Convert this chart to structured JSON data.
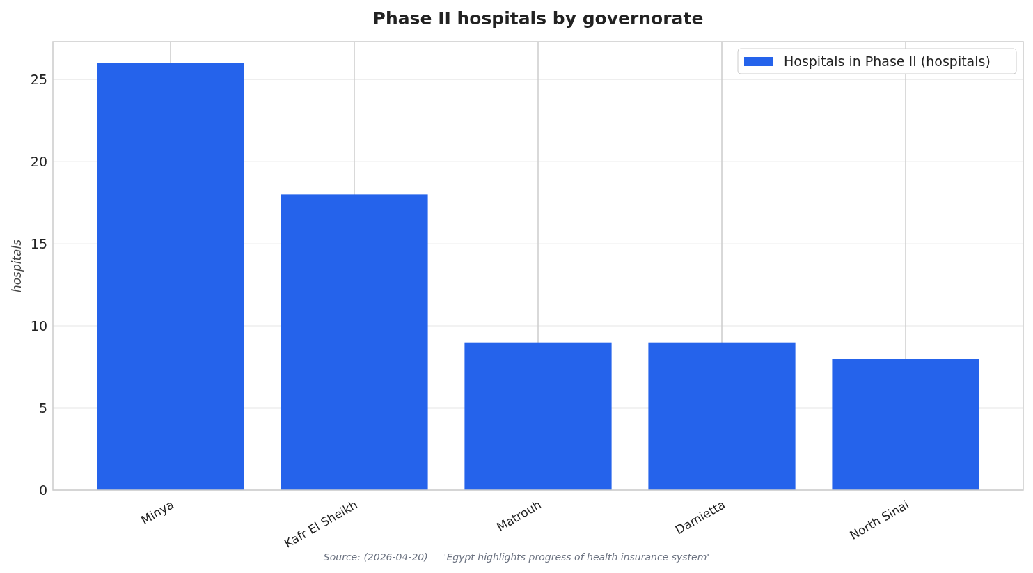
{
  "chart_data": {
    "type": "bar",
    "title": "Phase II hospitals by governorate",
    "ylabel": "hospitals",
    "categories": [
      "Minya",
      "Kafr El Sheikh",
      "Matrouh",
      "Damietta",
      "North Sinai"
    ],
    "series": [
      {
        "name": "Hospitals in Phase II (hospitals)",
        "color": "#2563eb",
        "values": [
          26,
          18,
          9,
          9,
          8
        ]
      }
    ],
    "ylim": [
      0,
      27.3
    ],
    "yticks": [
      0,
      5,
      10,
      15,
      20,
      25
    ],
    "grid": true,
    "legend": "top right",
    "annotations": [
      "Source: (2026-04-20) — 'Egypt highlights progress of health insurance system'"
    ]
  }
}
